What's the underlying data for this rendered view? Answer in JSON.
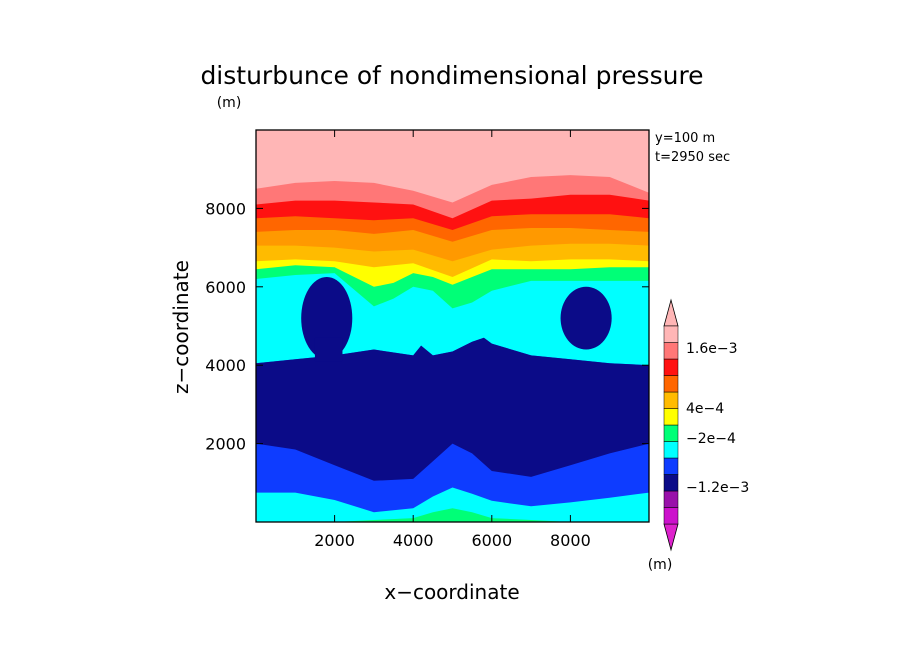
{
  "chart_data": {
    "type": "contour",
    "title": "disturbunce of nondimensional pressure",
    "title_unit": "(m)",
    "xlabel": "x−coordinate",
    "ylabel": "z−coordinate",
    "xlim": [
      0,
      10000
    ],
    "ylim": [
      0,
      10000
    ],
    "x_ticks": [
      2000,
      4000,
      6000,
      8000
    ],
    "y_ticks": [
      2000,
      4000,
      6000,
      8000
    ],
    "x_tick_labels": [
      "2000",
      "4000",
      "6000",
      "8000"
    ],
    "y_tick_labels": [
      "2000",
      "4000",
      "6000",
      "8000"
    ],
    "annotations": [
      "y=100 m",
      "t=2950 sec"
    ],
    "colorbar": {
      "unit_label": "(m)",
      "labels": [
        "1.6e−3",
        "4e−4",
        "−2e−4",
        "−1.2e−3"
      ],
      "colors": [
        "#cc11cc",
        "#9911aa",
        "#0b0b88",
        "#0e3cff",
        "#00ffff",
        "#00ff77",
        "#ffff00",
        "#ffbb00",
        "#ff6600",
        "#ff1111",
        "#ff7777",
        "#ffb6b6"
      ]
    },
    "level_boundaries": [
      {
        "name": "cyan-lower-edge",
        "x": [
          0,
          1000,
          2000,
          3000,
          4000,
          4500,
          5000,
          5500,
          6000,
          7000,
          8000,
          9000,
          10000
        ],
        "z": [
          0,
          0,
          0,
          50,
          100,
          250,
          350,
          250,
          100,
          50,
          0,
          0,
          0
        ]
      },
      {
        "name": "cyan-top",
        "x": [
          0,
          1000,
          2000,
          3000,
          4000,
          4500,
          5000,
          5500,
          6000,
          7000,
          8000,
          9000,
          10000
        ],
        "z": [
          750,
          750,
          560,
          250,
          350,
          650,
          880,
          720,
          540,
          400,
          500,
          620,
          750
        ]
      },
      {
        "name": "blue-bottom",
        "x": [
          0,
          1000,
          2000,
          3000,
          4000,
          4500,
          5000,
          5500,
          6000,
          7000,
          8000,
          9000,
          10000
        ],
        "z": [
          2000,
          1850,
          1450,
          1050,
          1100,
          1550,
          2000,
          1750,
          1300,
          1150,
          1450,
          1750,
          2000
        ]
      },
      {
        "name": "blue-top",
        "x": [
          0,
          1000,
          2000,
          3000,
          4000,
          4200,
          4500,
          5000,
          5500,
          5800,
          6000,
          7000,
          8000,
          9000,
          10000
        ],
        "z": [
          4050,
          4150,
          4250,
          4400,
          4250,
          4500,
          4250,
          4350,
          4600,
          4700,
          4550,
          4250,
          4150,
          4050,
          4000
        ]
      },
      {
        "name": "cyan-band-top",
        "x": [
          0,
          1000,
          2000,
          3000,
          3500,
          4000,
          4500,
          5000,
          5500,
          6000,
          7000,
          8000,
          9000,
          10000
        ],
        "z": [
          6200,
          6300,
          6350,
          5500,
          5700,
          6000,
          5900,
          5450,
          5600,
          5900,
          6150,
          6150,
          6150,
          6150
        ]
      },
      {
        "name": "green-top",
        "x": [
          0,
          1000,
          2000,
          3000,
          3500,
          4000,
          4500,
          5000,
          5500,
          6000,
          7000,
          8000,
          9000,
          10000
        ],
        "z": [
          6450,
          6550,
          6500,
          6000,
          6100,
          6350,
          6250,
          6050,
          6250,
          6450,
          6450,
          6450,
          6500,
          6500
        ]
      },
      {
        "name": "yellow-top",
        "x": [
          0,
          1000,
          2000,
          3000,
          4000,
          5000,
          6000,
          7000,
          8000,
          9000,
          10000
        ],
        "z": [
          6650,
          6700,
          6650,
          6500,
          6600,
          6250,
          6700,
          6650,
          6700,
          6700,
          6650
        ]
      },
      {
        "name": "light-orange-top",
        "x": [
          0,
          1000,
          2000,
          3000,
          4000,
          5000,
          6000,
          7000,
          8000,
          9000,
          10000
        ],
        "z": [
          7050,
          7050,
          7000,
          6900,
          6950,
          6650,
          6950,
          7050,
          7100,
          7100,
          7050
        ]
      },
      {
        "name": "orange-top",
        "x": [
          0,
          1000,
          2000,
          3000,
          4000,
          5000,
          6000,
          7000,
          8000,
          9000,
          10000
        ],
        "z": [
          7400,
          7450,
          7450,
          7350,
          7450,
          7150,
          7450,
          7500,
          7500,
          7450,
          7400
        ]
      },
      {
        "name": "dark-orange-top",
        "x": [
          0,
          1000,
          2000,
          3000,
          4000,
          5000,
          6000,
          7000,
          8000,
          9000,
          10000
        ],
        "z": [
          7750,
          7800,
          7750,
          7700,
          7750,
          7450,
          7800,
          7850,
          7850,
          7850,
          7750
        ]
      },
      {
        "name": "red-top",
        "x": [
          0,
          1000,
          2000,
          3000,
          4000,
          5000,
          6000,
          7000,
          8000,
          9000,
          10000
        ],
        "z": [
          8100,
          8200,
          8200,
          8150,
          8100,
          7750,
          8200,
          8250,
          8350,
          8350,
          8200
        ]
      },
      {
        "name": "salmon-top",
        "x": [
          0,
          1000,
          2000,
          3000,
          4000,
          5000,
          6000,
          7000,
          8000,
          9000,
          10000
        ],
        "z": [
          8500,
          8650,
          8700,
          8650,
          8450,
          8150,
          8600,
          8800,
          8850,
          8800,
          8400
        ]
      }
    ],
    "features": [
      {
        "name": "dark-blue-blob-left",
        "center": [
          1800,
          5200
        ],
        "radius": [
          650,
          1050
        ]
      },
      {
        "name": "dark-blue-blob-right",
        "center": [
          8400,
          5200
        ],
        "radius": [
          650,
          800
        ]
      }
    ]
  }
}
